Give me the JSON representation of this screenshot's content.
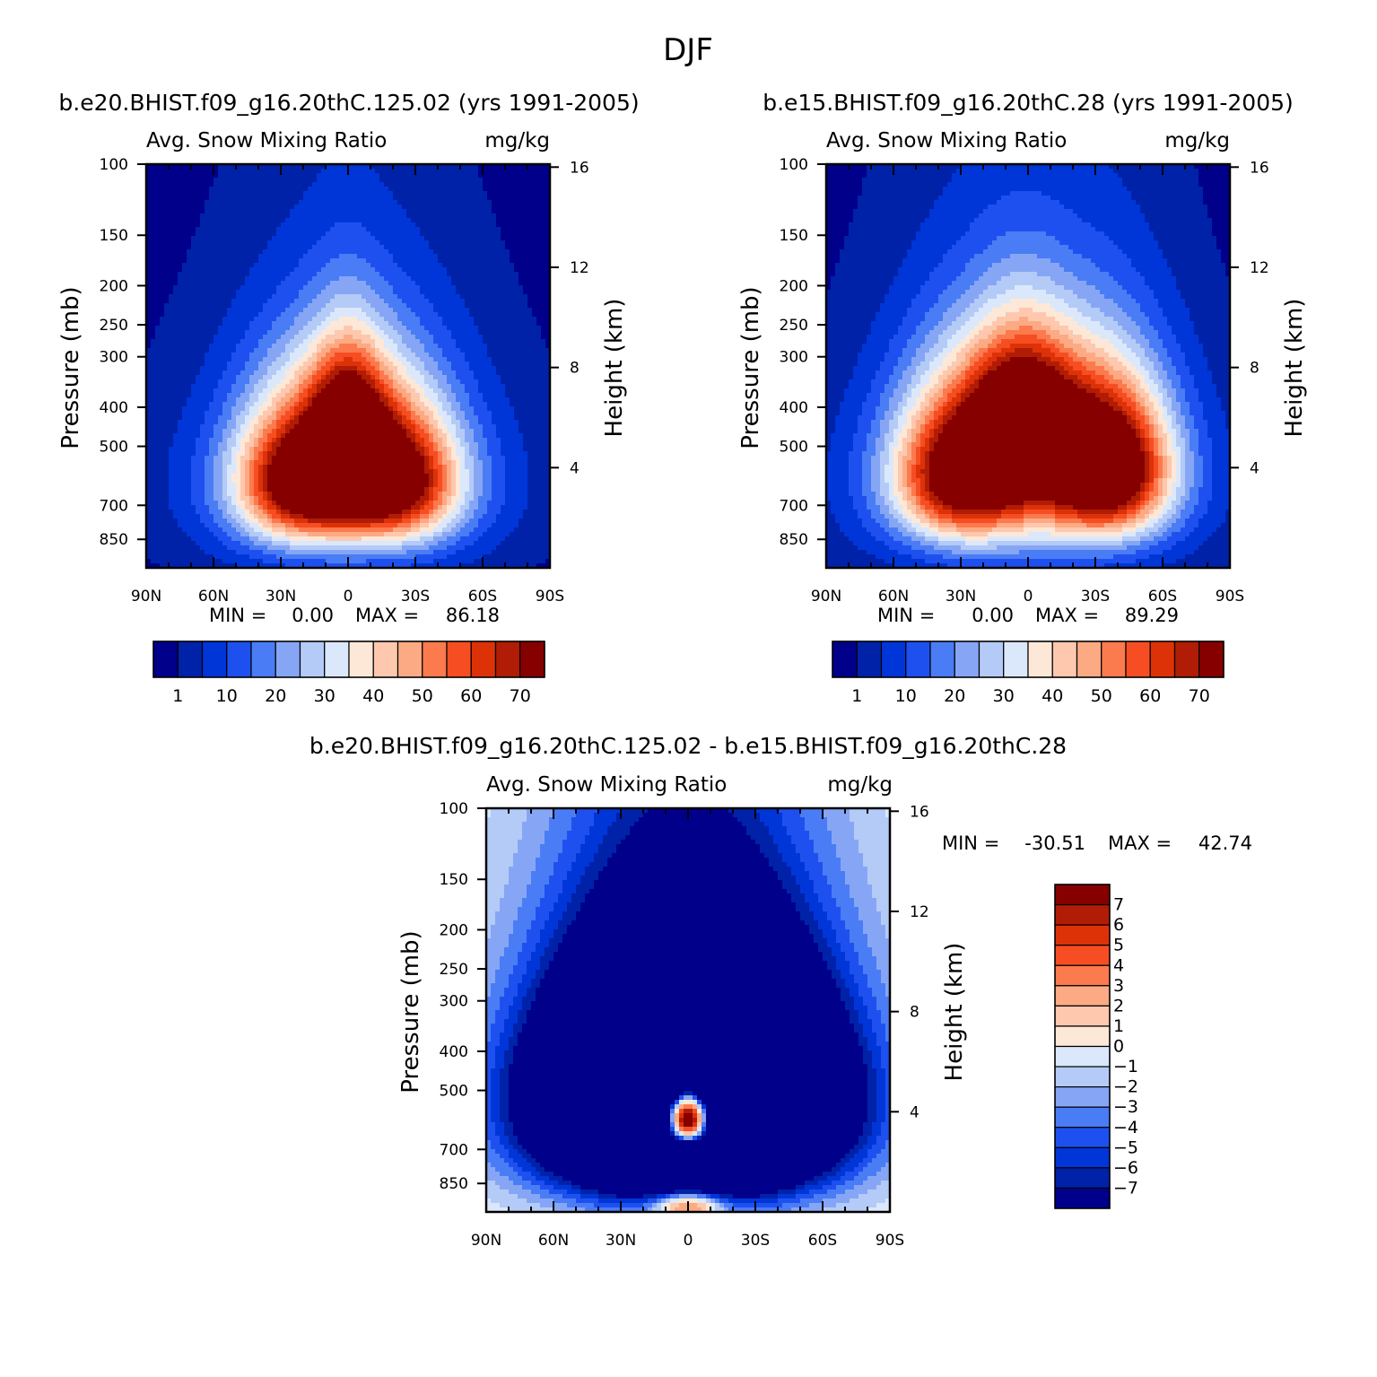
{
  "figure_title": "DJF",
  "chart_data": [
    {
      "type": "contour",
      "id": "case1",
      "title": "b.e20.BHIST.f09_g16.20thC.125.02 (yrs 1991-2005)",
      "variable": "Avg. Snow Mixing Ratio",
      "units": "mg/kg",
      "ylabel": "Pressure (mb)",
      "ylabel_right": "Height (km)",
      "x_ticks": [
        "90N",
        "60N",
        "30N",
        "0",
        "30S",
        "60S",
        "90S"
      ],
      "x_range": [
        90,
        -90
      ],
      "p_ticks": [
        100,
        150,
        200,
        250,
        300,
        400,
        500,
        700,
        850
      ],
      "p_range": [
        100,
        1000
      ],
      "height_ticks": [
        16,
        12,
        8,
        4
      ],
      "min_label": "MIN =",
      "min_value": "0.00",
      "max_label": "MAX =",
      "max_value": "86.18",
      "levels": [
        0,
        1,
        5,
        10,
        15,
        20,
        25,
        30,
        35,
        40,
        45,
        50,
        55,
        60,
        65,
        70,
        100
      ],
      "colorbar_labels": [
        "1",
        "10",
        "20",
        "30",
        "40",
        "50",
        "60",
        "70"
      ],
      "features": [
        {
          "lat": 22,
          "p": 600,
          "amp": 62,
          "sx": 28,
          "sp": 230
        },
        {
          "lat": 0,
          "p": 470,
          "amp": 46,
          "sx": 16,
          "sp": 200
        },
        {
          "lat": -22,
          "p": 600,
          "amp": 60,
          "sx": 28,
          "sp": 230
        },
        {
          "lat": 0,
          "p": 330,
          "amp": 14,
          "sx": 34,
          "sp": 150
        },
        {
          "lat": 0,
          "p": 620,
          "amp": 30,
          "sx": 58,
          "sp": 320
        }
      ]
    },
    {
      "type": "contour",
      "id": "case2",
      "title": "b.e15.BHIST.f09_g16.20thC.28 (yrs 1991-2005)",
      "variable": "Avg. Snow Mixing Ratio",
      "units": "mg/kg",
      "ylabel": "Pressure (mb)",
      "ylabel_right": "Height (km)",
      "x_ticks": [
        "90N",
        "60N",
        "30N",
        "0",
        "30S",
        "60S",
        "90S"
      ],
      "x_range": [
        90,
        -90
      ],
      "p_ticks": [
        100,
        150,
        200,
        250,
        300,
        400,
        500,
        700,
        850
      ],
      "p_range": [
        100,
        1000
      ],
      "height_ticks": [
        16,
        12,
        8,
        4
      ],
      "min_label": "MIN =",
      "min_value": "0.00",
      "max_label": "MAX =",
      "max_value": "89.29",
      "levels": [
        0,
        1,
        5,
        10,
        15,
        20,
        25,
        30,
        35,
        40,
        45,
        50,
        55,
        60,
        65,
        70,
        100
      ],
      "colorbar_labels": [
        "1",
        "10",
        "20",
        "30",
        "40",
        "50",
        "60",
        "70"
      ],
      "features": [
        {
          "lat": 30,
          "p": 580,
          "amp": 64,
          "sx": 30,
          "sp": 240
        },
        {
          "lat": 2,
          "p": 440,
          "amp": 52,
          "sx": 22,
          "sp": 190
        },
        {
          "lat": -36,
          "p": 560,
          "amp": 75,
          "sx": 28,
          "sp": 240
        },
        {
          "lat": 0,
          "p": 330,
          "amp": 18,
          "sx": 40,
          "sp": 160
        },
        {
          "lat": 0,
          "p": 620,
          "amp": 32,
          "sx": 62,
          "sp": 330
        }
      ]
    },
    {
      "type": "contour",
      "id": "diff",
      "title": "b.e20.BHIST.f09_g16.20thC.125.02 - b.e15.BHIST.f09_g16.20thC.28",
      "variable": "Avg. Snow Mixing Ratio",
      "units": "mg/kg",
      "ylabel": "Pressure (mb)",
      "ylabel_right": "Height (km)",
      "x_ticks": [
        "90N",
        "60N",
        "30N",
        "0",
        "30S",
        "60S",
        "90S"
      ],
      "x_range": [
        90,
        -90
      ],
      "p_ticks": [
        100,
        150,
        200,
        250,
        300,
        400,
        500,
        700,
        850
      ],
      "p_range": [
        100,
        1000
      ],
      "height_ticks": [
        16,
        12,
        8,
        4
      ],
      "min_label": "MIN =",
      "min_value": "-30.51",
      "max_label": "MAX =",
      "max_value": "42.74",
      "levels": [
        -100,
        -7,
        -6,
        -5,
        -4,
        -3,
        -2,
        -1,
        0,
        1,
        2,
        3,
        4,
        5,
        6,
        7,
        100
      ],
      "colorbar_labels": [
        "7",
        "6",
        "5",
        "4",
        "3",
        "2",
        "1",
        "0",
        "-1",
        "-2",
        "-3",
        "-4",
        "-5",
        "-6",
        "-7"
      ],
      "features": [
        {
          "lat": 0,
          "p": 520,
          "amp": -38,
          "sx": 62,
          "sp": 330
        },
        {
          "lat": 0,
          "p": 580,
          "amp": 45,
          "sx": 13,
          "sp": 120
        },
        {
          "lat": 0,
          "p": 760,
          "amp": -35,
          "sx": 12,
          "sp": 55
        },
        {
          "lat": 0,
          "p": 960,
          "amp": 9,
          "sx": 15,
          "sp": 80
        }
      ]
    }
  ],
  "colors": {
    "palette": [
      "#00008b",
      "#0022a8",
      "#0036d8",
      "#1e50f0",
      "#4a7cf5",
      "#86a6f5",
      "#b4cbf8",
      "#dbe8fb",
      "#fde8d7",
      "#fdc8ae",
      "#fcaa84",
      "#fb7a4e",
      "#f64e22",
      "#dd3208",
      "#b01c05",
      "#860000"
    ]
  }
}
